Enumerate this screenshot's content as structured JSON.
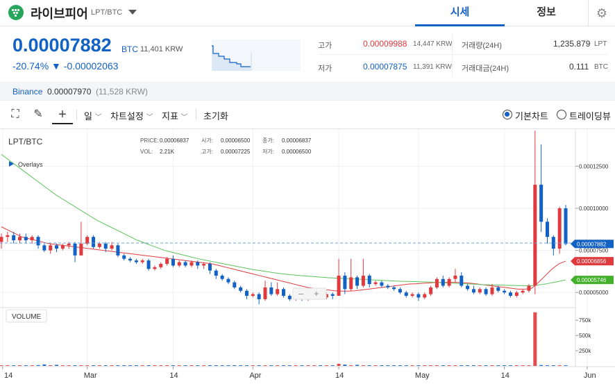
{
  "header": {
    "coin_name": "라이브피어",
    "coin_pair": "LPT/BTC",
    "tabs": [
      {
        "label": "시세",
        "active": true
      },
      {
        "label": "정보",
        "active": false
      }
    ],
    "settings_icon": "gear-icon"
  },
  "price": {
    "current": "0.00007882",
    "unit": "BTC",
    "krw": "11,401 KRW",
    "change_pct": "-20.74%",
    "change_arrow": "▼",
    "change_abs": "-0.00002063",
    "color": "#1261c4"
  },
  "stats": {
    "high_label": "고가",
    "high_value": "0.00009988",
    "high_krw": "14,447 KRW",
    "low_label": "저가",
    "low_value": "0.00007875",
    "low_krw": "11,391 KRW",
    "volume_label": "거래량(24H)",
    "volume_value": "1,235.879",
    "volume_unit": "LPT",
    "amount_label": "거래대금(24H)",
    "amount_value": "0.111",
    "amount_unit": "BTC",
    "up_color": "#e03a3e",
    "down_color": "#1261c4"
  },
  "exchange": {
    "name": "Binance",
    "price": "0.00007970",
    "krw": "(11,528 KRW)"
  },
  "toolbar": {
    "period_label": "일",
    "chart_settings_label": "차트설정",
    "indicator_label": "지표",
    "reset_label": "초기화",
    "basic_chart_label": "기본차트",
    "tradingview_label": "트레이딩뷰",
    "selected_view": "기본차트"
  },
  "chart_info": {
    "symbol": "LPT/BTC",
    "overlays_label": "Overlays",
    "price_label": "PRICE:",
    "price_value": "0.00006837",
    "open_label": "시가:",
    "open_value": "0.00006500",
    "close_label": "종가:",
    "close_value": "0.00006837",
    "vol_label": "VOL:",
    "vol_value": "2.21K",
    "high_label": "고가:",
    "high_value": "0.00007225",
    "low_label": "저가:",
    "low_value": "0.00006500",
    "volume_panel_label": "VOLUME"
  },
  "chart_data": {
    "type": "candlestick",
    "x_ticks": [
      "14",
      "Mar",
      "14",
      "Apr",
      "14",
      "May",
      "14",
      "Jun"
    ],
    "y_ticks": [
      "0.00012500",
      "0.00010000",
      "0.00007500",
      "0.00005000"
    ],
    "y_range": [
      4.1e-05,
      0.000147
    ],
    "volume_ticks": [
      "750k",
      "500k",
      "250k"
    ],
    "volume_range": [
      0,
      900
    ],
    "price_tags": [
      {
        "value": "0.00007882",
        "color": "#1261c4"
      },
      {
        "value": "0.00006856",
        "color": "#e03a3e"
      },
      {
        "value": "0.00005746",
        "color": "#43b02a"
      }
    ],
    "ma_series": [
      {
        "color": "#e03a3e",
        "values": [
          8.9,
          8.7,
          8.5,
          8.3,
          8.2,
          8.1,
          8.0,
          7.9,
          7.85,
          7.8,
          7.75,
          7.7,
          7.65,
          7.6,
          7.55,
          7.5,
          7.45,
          7.4,
          7.35,
          7.3,
          7.25,
          7.2,
          7.15,
          7.1,
          7.05,
          7.0,
          6.95,
          6.9,
          6.85,
          6.8,
          6.75,
          6.7,
          6.6,
          6.5,
          6.4,
          6.3,
          6.2,
          6.1,
          6.0,
          5.9,
          5.8,
          5.7,
          5.6,
          5.5,
          5.4,
          5.3,
          5.25,
          5.2,
          5.15,
          5.1,
          5.08,
          5.08,
          5.1,
          5.15,
          5.2,
          5.25,
          5.3,
          5.35,
          5.4,
          5.45,
          5.5,
          5.52,
          5.55,
          5.57,
          5.6,
          5.6,
          5.6,
          5.6,
          5.58,
          5.55,
          5.5,
          5.45,
          5.4,
          5.35,
          5.3,
          5.25,
          5.2,
          5.2,
          5.25,
          5.6,
          6.0,
          6.4,
          6.7,
          6.86
        ]
      },
      {
        "color": "#5cc35c",
        "values": [
          13.2,
          12.9,
          12.6,
          12.3,
          12.0,
          11.7,
          11.4,
          11.1,
          10.8,
          10.55,
          10.3,
          10.05,
          9.8,
          9.55,
          9.3,
          9.1,
          8.9,
          8.7,
          8.5,
          8.3,
          8.1,
          7.95,
          7.8,
          7.65,
          7.5,
          7.4,
          7.3,
          7.2,
          7.1,
          7.0,
          6.92,
          6.84,
          6.76,
          6.68,
          6.6,
          6.52,
          6.44,
          6.36,
          6.3,
          6.24,
          6.18,
          6.12,
          6.08,
          6.04,
          6.0,
          5.97,
          5.94,
          5.91,
          5.88,
          5.86,
          5.84,
          5.82,
          5.8,
          5.78,
          5.76,
          5.74,
          5.72,
          5.7,
          5.68,
          5.66,
          5.65,
          5.64,
          5.63,
          5.62,
          5.6,
          5.58,
          5.56,
          5.54,
          5.52,
          5.5,
          5.48,
          5.46,
          5.45,
          5.44,
          5.43,
          5.42,
          5.41,
          5.4,
          5.4,
          5.45,
          5.5,
          5.58,
          5.66,
          5.75
        ]
      }
    ],
    "candles": [
      [
        8.0,
        8.3,
        7.6,
        8.5
      ],
      [
        8.3,
        8.4,
        8.0,
        8.6
      ],
      [
        8.4,
        8.1,
        7.9,
        8.6
      ],
      [
        8.1,
        8.3,
        7.9,
        8.5
      ],
      [
        8.3,
        8.1,
        7.9,
        8.5
      ],
      [
        8.1,
        8.3,
        7.9,
        8.4
      ],
      [
        8.3,
        7.8,
        7.6,
        8.4
      ],
      [
        7.8,
        7.5,
        7.4,
        7.9
      ],
      [
        7.5,
        7.8,
        7.3,
        7.9
      ],
      [
        7.8,
        7.6,
        7.4,
        7.9
      ],
      [
        7.6,
        7.8,
        7.5,
        7.9
      ],
      [
        7.8,
        7.9,
        7.6,
        8.0
      ],
      [
        7.9,
        7.2,
        6.8,
        8.0
      ],
      [
        7.2,
        7.9,
        7.2,
        9.2
      ],
      [
        7.9,
        8.3,
        7.8,
        8.4
      ],
      [
        8.3,
        7.7,
        7.6,
        8.4
      ],
      [
        7.7,
        7.9,
        7.6,
        8.0
      ],
      [
        7.9,
        7.6,
        7.4,
        8.0
      ],
      [
        7.6,
        7.8,
        7.5,
        8.0
      ],
      [
        7.8,
        7.2,
        7.1,
        7.9
      ],
      [
        7.2,
        7.0,
        6.9,
        7.3
      ],
      [
        7.0,
        6.9,
        6.8,
        7.1
      ],
      [
        6.9,
        6.8,
        6.7,
        7.0
      ],
      [
        6.8,
        6.9,
        6.7,
        7.0
      ],
      [
        6.9,
        6.4,
        6.3,
        7.0
      ],
      [
        6.4,
        6.5,
        6.3,
        6.6
      ],
      [
        6.5,
        6.7,
        6.4,
        6.8
      ],
      [
        6.7,
        7.0,
        6.6,
        7.1
      ],
      [
        7.0,
        6.6,
        6.5,
        7.2
      ],
      [
        6.6,
        6.8,
        6.5,
        6.9
      ],
      [
        6.8,
        6.6,
        6.5,
        6.9
      ],
      [
        6.6,
        6.8,
        6.5,
        6.9
      ],
      [
        6.8,
        6.6,
        6.4,
        6.9
      ],
      [
        6.6,
        6.7,
        6.4,
        6.8
      ],
      [
        6.7,
        6.3,
        6.1,
        6.8
      ],
      [
        6.3,
        6.0,
        5.8,
        6.4
      ],
      [
        6.0,
        5.8,
        5.7,
        6.1
      ],
      [
        5.8,
        5.6,
        5.5,
        5.9
      ],
      [
        5.6,
        5.3,
        5.2,
        5.7
      ],
      [
        5.3,
        5.1,
        5.0,
        5.4
      ],
      [
        5.1,
        4.8,
        4.6,
        5.2
      ],
      [
        4.8,
        4.9,
        4.7,
        5.0
      ],
      [
        4.9,
        4.6,
        4.3,
        5.0
      ],
      [
        4.6,
        5.3,
        4.5,
        5.7
      ],
      [
        5.3,
        4.9,
        4.8,
        5.6
      ],
      [
        4.9,
        5.2,
        4.8,
        5.6
      ],
      [
        5.2,
        4.8,
        4.7,
        5.3
      ],
      [
        4.8,
        4.6,
        4.5,
        4.9
      ],
      [
        4.6,
        4.7,
        4.5,
        4.8
      ],
      [
        4.7,
        4.6,
        4.5,
        4.8
      ],
      [
        4.6,
        4.7,
        4.5,
        4.8
      ],
      [
        4.7,
        4.8,
        4.6,
        4.9
      ],
      [
        4.8,
        4.7,
        4.6,
        4.9
      ],
      [
        4.7,
        4.9,
        4.6,
        5.0
      ],
      [
        4.9,
        4.8,
        4.6,
        5.0
      ],
      [
        4.8,
        6.0,
        4.8,
        7.0
      ],
      [
        6.0,
        5.2,
        4.9,
        6.2
      ],
      [
        5.2,
        5.9,
        5.1,
        7.0
      ],
      [
        5.9,
        5.4,
        5.2,
        6.0
      ],
      [
        5.4,
        6.0,
        5.3,
        7.0
      ],
      [
        6.0,
        5.5,
        5.3,
        6.1
      ],
      [
        5.5,
        5.6,
        5.4,
        5.7
      ],
      [
        5.6,
        5.4,
        5.3,
        5.7
      ],
      [
        5.4,
        5.3,
        5.2,
        5.5
      ],
      [
        5.3,
        5.2,
        5.1,
        5.4
      ],
      [
        5.2,
        5.0,
        4.9,
        5.3
      ],
      [
        5.0,
        4.8,
        4.7,
        5.1
      ],
      [
        4.8,
        4.9,
        4.7,
        5.0
      ],
      [
        4.9,
        4.7,
        4.5,
        5.0
      ],
      [
        4.7,
        4.9,
        4.6,
        5.0
      ],
      [
        4.9,
        5.3,
        4.8,
        5.4
      ],
      [
        5.3,
        5.8,
        5.2,
        5.9
      ],
      [
        5.8,
        5.4,
        5.3,
        6.0
      ],
      [
        5.4,
        5.8,
        5.3,
        5.9
      ],
      [
        5.8,
        6.0,
        5.6,
        6.4
      ],
      [
        6.0,
        5.4,
        5.3,
        6.2
      ],
      [
        5.4,
        5.2,
        5.1,
        5.5
      ],
      [
        5.2,
        5.0,
        4.9,
        5.4
      ],
      [
        5.0,
        5.2,
        4.9,
        5.3
      ],
      [
        5.2,
        4.9,
        4.8,
        5.3
      ],
      [
        4.9,
        5.3,
        4.8,
        5.5
      ],
      [
        5.3,
        5.1,
        5.0,
        5.4
      ],
      [
        5.1,
        5.0,
        4.9,
        5.2
      ],
      [
        5.0,
        4.8,
        4.7,
        5.1
      ],
      [
        4.8,
        5.0,
        4.7,
        5.1
      ],
      [
        5.0,
        5.1,
        4.9,
        5.2
      ],
      [
        5.1,
        5.4,
        5.0,
        5.5
      ],
      [
        5.4,
        11.4,
        4.9,
        14.6
      ],
      [
        11.4,
        9.2,
        8.6,
        13.8
      ],
      [
        9.2,
        8.3,
        7.9,
        9.4
      ],
      [
        8.3,
        7.6,
        7.2,
        8.4
      ],
      [
        7.6,
        10.0,
        7.3,
        10.1
      ],
      [
        10.0,
        7.88,
        7.8,
        10.2
      ]
    ],
    "volumes": [
      5,
      12,
      4,
      3,
      2,
      3,
      14,
      25,
      11,
      18,
      4,
      4,
      4,
      3,
      6,
      3,
      3,
      2,
      3,
      4,
      4,
      3,
      3,
      3,
      3,
      3,
      2,
      3,
      3,
      2,
      3,
      2,
      2,
      2,
      3,
      4,
      3,
      3,
      4,
      3,
      3,
      3,
      12,
      9,
      4,
      4,
      4,
      3,
      3,
      3,
      3,
      3,
      3,
      3,
      3,
      35,
      22,
      12,
      18,
      5,
      12,
      4,
      4,
      3,
      3,
      2,
      3,
      3,
      3,
      4,
      3,
      10,
      6,
      12,
      4,
      3,
      3,
      3,
      2,
      3,
      3,
      3,
      3,
      3,
      3,
      4,
      3,
      880,
      15,
      6,
      4,
      4,
      3
    ]
  }
}
